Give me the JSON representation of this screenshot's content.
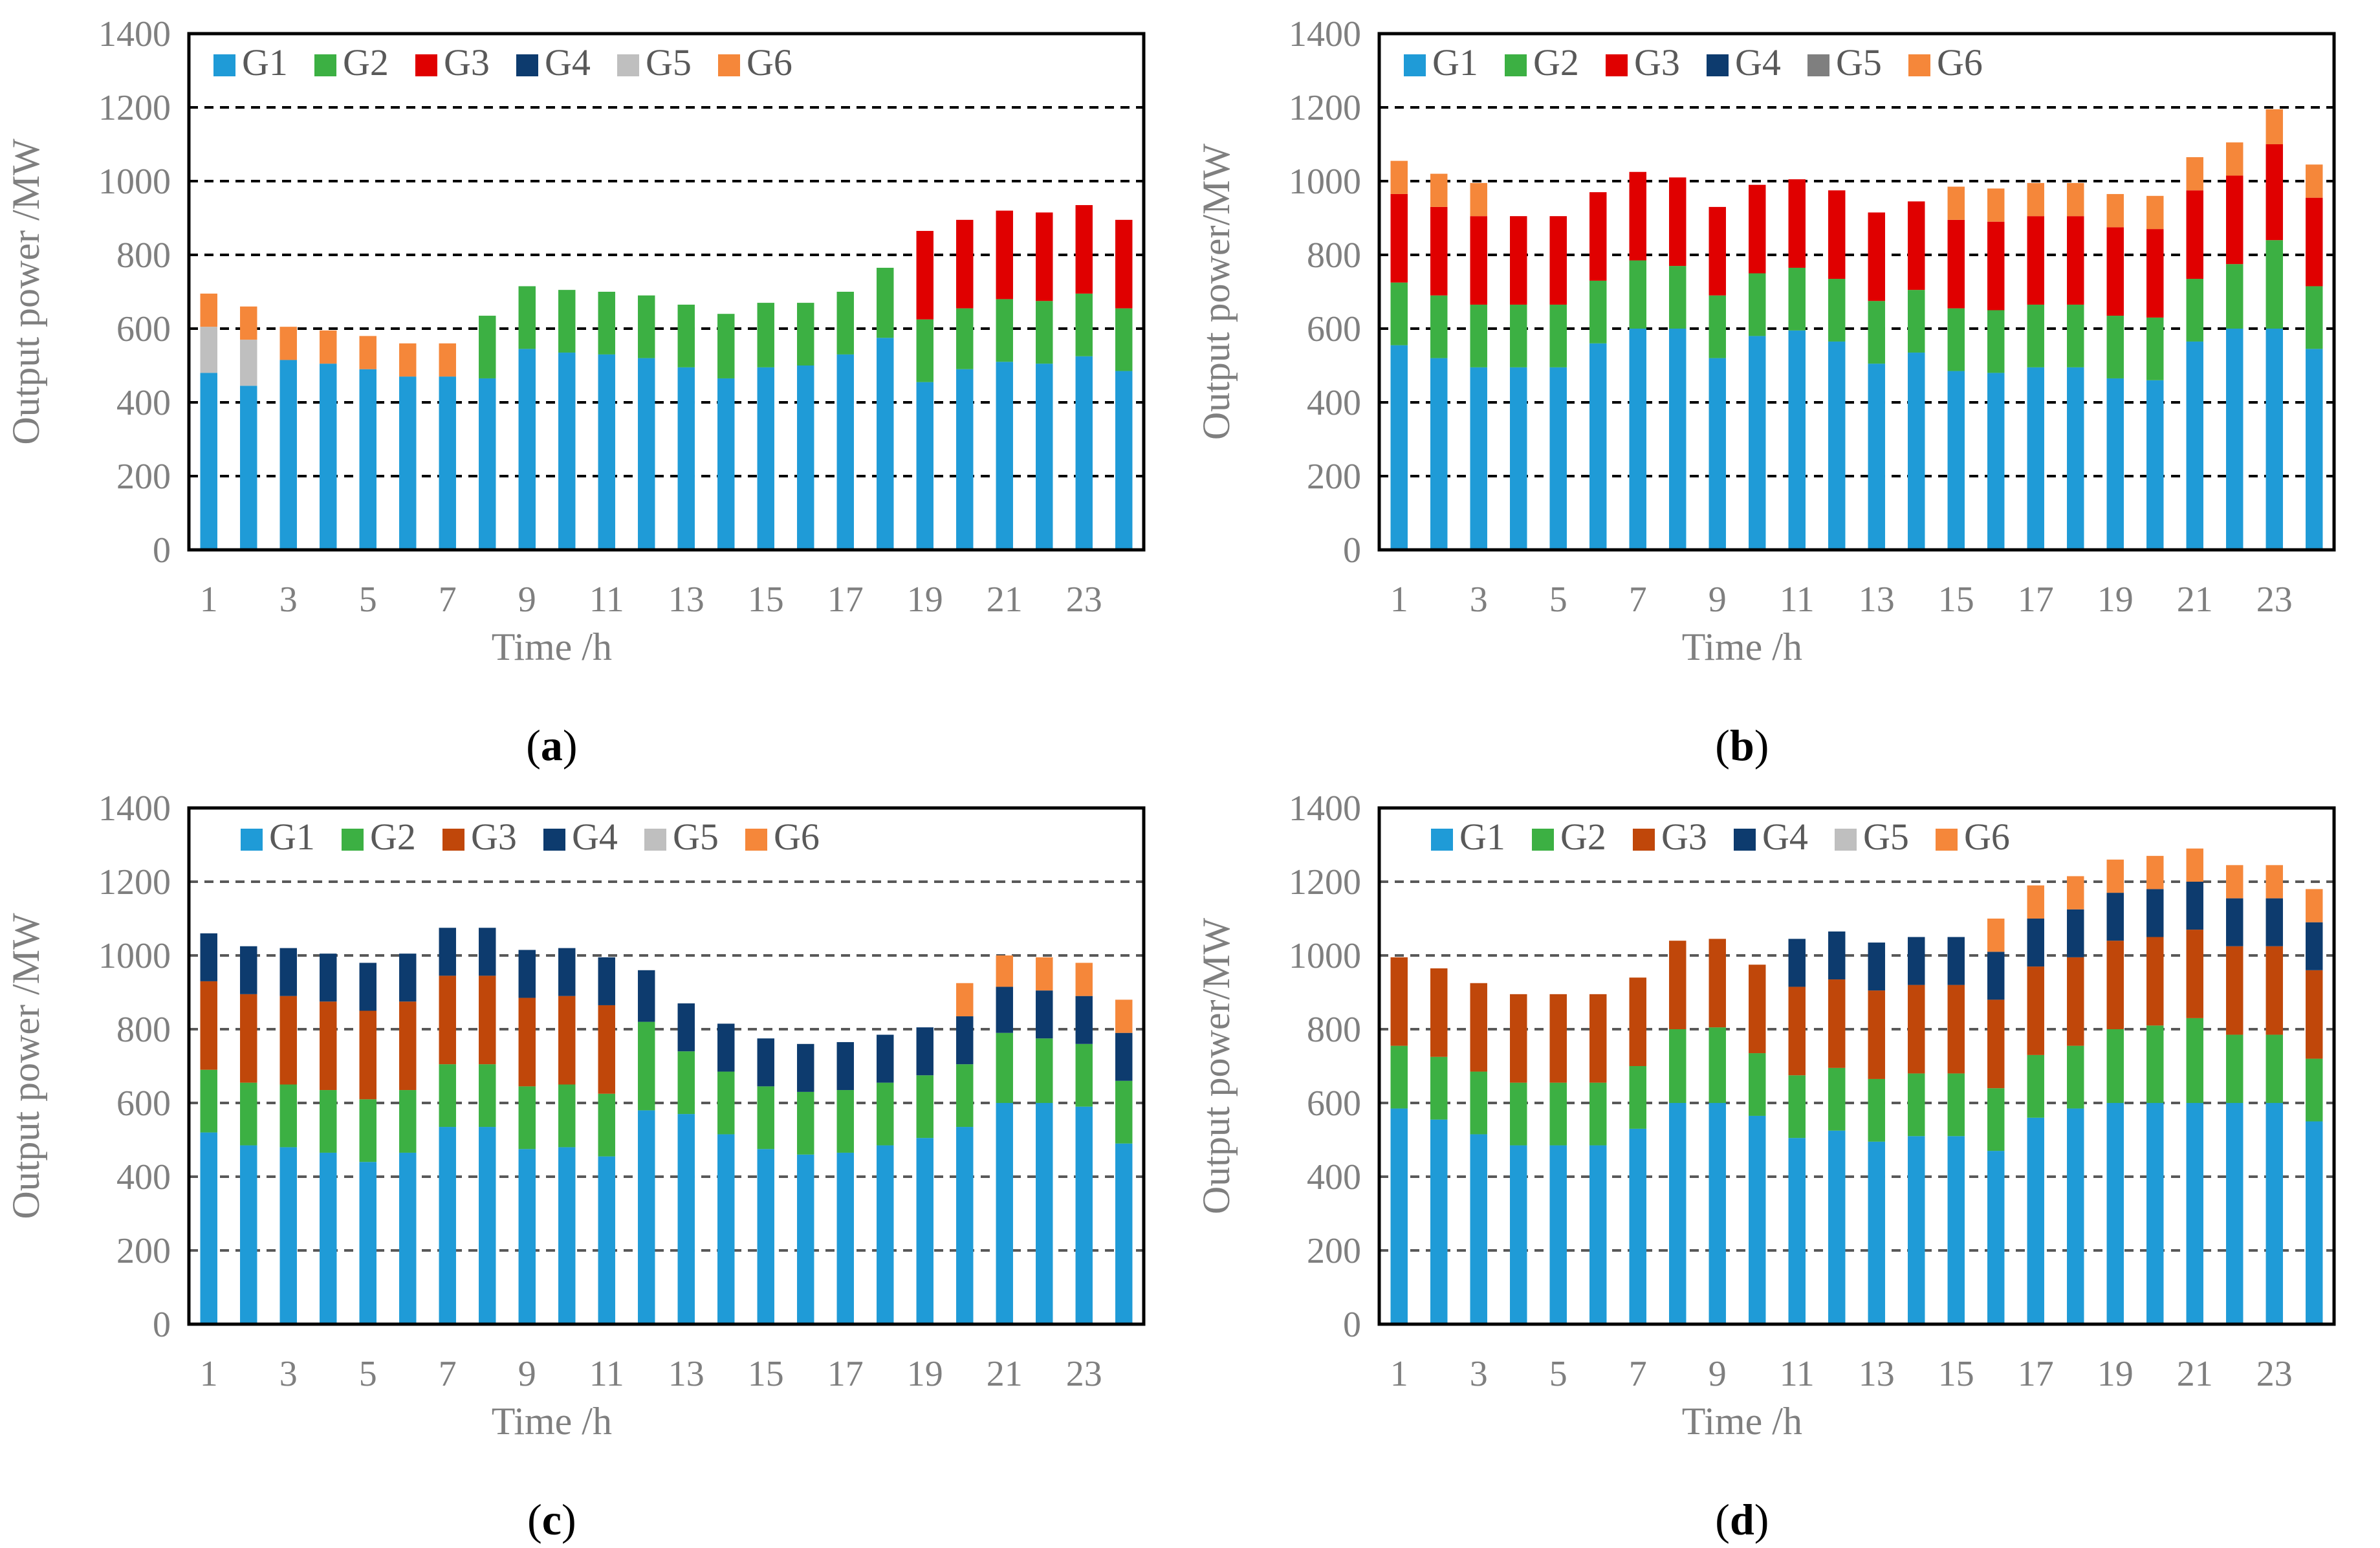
{
  "chart_data": [
    {
      "id": "a",
      "type": "bar",
      "stacked": true,
      "label": "a",
      "title": "",
      "xlabel": "Time /h",
      "ylabel": "Output power /MW",
      "ylim": [
        0,
        1400
      ],
      "yticks": [
        0,
        200,
        400,
        600,
        800,
        1000,
        1200,
        1400
      ],
      "xtick_labels": [
        "1",
        "3",
        "5",
        "7",
        "9",
        "11",
        "13",
        "15",
        "17",
        "19",
        "21",
        "23"
      ],
      "categories": [
        1,
        2,
        3,
        4,
        5,
        6,
        7,
        8,
        9,
        10,
        11,
        12,
        13,
        14,
        15,
        16,
        17,
        18,
        19,
        20,
        21,
        22,
        23,
        24
      ],
      "grid": "horizontal dashed at 200, 400, 600, 800, 1000, 1200",
      "legend_position": "top-left inside",
      "series": [
        {
          "name": "G1",
          "color": "#1f9bd7",
          "values": [
            480,
            445,
            515,
            505,
            490,
            470,
            470,
            465,
            545,
            535,
            530,
            520,
            495,
            465,
            495,
            500,
            530,
            575,
            455,
            490,
            510,
            505,
            525,
            485
          ]
        },
        {
          "name": "G2",
          "color": "#3cb043",
          "values": [
            0,
            0,
            0,
            0,
            0,
            0,
            0,
            170,
            170,
            170,
            170,
            170,
            170,
            175,
            175,
            170,
            170,
            190,
            170,
            165,
            170,
            170,
            170,
            170
          ]
        },
        {
          "name": "G3",
          "color": "#e00000",
          "values": [
            0,
            0,
            0,
            0,
            0,
            0,
            0,
            0,
            0,
            0,
            0,
            0,
            0,
            0,
            0,
            0,
            0,
            0,
            240,
            240,
            240,
            240,
            240,
            240
          ]
        },
        {
          "name": "G4",
          "color": "#0d3b6e",
          "values": [
            0,
            0,
            0,
            0,
            0,
            0,
            0,
            0,
            0,
            0,
            0,
            0,
            0,
            0,
            0,
            0,
            0,
            0,
            0,
            0,
            0,
            0,
            0,
            0
          ]
        },
        {
          "name": "G5",
          "color": "#bfbfbf",
          "values": [
            125,
            125,
            0,
            0,
            0,
            0,
            0,
            0,
            0,
            0,
            0,
            0,
            0,
            0,
            0,
            0,
            0,
            0,
            0,
            0,
            0,
            0,
            0,
            0
          ]
        },
        {
          "name": "G6",
          "color": "#f5873a",
          "values": [
            90,
            90,
            90,
            90,
            90,
            90,
            90,
            0,
            0,
            0,
            0,
            0,
            0,
            0,
            0,
            0,
            0,
            0,
            0,
            0,
            0,
            0,
            0,
            0
          ]
        }
      ]
    },
    {
      "id": "b",
      "type": "bar",
      "stacked": true,
      "label": "b",
      "title": "",
      "xlabel": "Time /h",
      "ylabel": "Output power/MW",
      "ylim": [
        0,
        1400
      ],
      "yticks": [
        0,
        200,
        400,
        600,
        800,
        1000,
        1200,
        1400
      ],
      "xtick_labels": [
        "1",
        "3",
        "5",
        "7",
        "9",
        "11",
        "13",
        "15",
        "17",
        "19",
        "21",
        "23"
      ],
      "categories": [
        1,
        2,
        3,
        4,
        5,
        6,
        7,
        8,
        9,
        10,
        11,
        12,
        13,
        14,
        15,
        16,
        17,
        18,
        19,
        20,
        21,
        22,
        23,
        24
      ],
      "grid": "horizontal dashed at 200, 400, 600, 800, 1000, 1200",
      "legend_position": "top-left inside",
      "series": [
        {
          "name": "G1",
          "color": "#1f9bd7",
          "values": [
            555,
            520,
            495,
            495,
            495,
            560,
            600,
            600,
            520,
            580,
            595,
            565,
            505,
            535,
            485,
            480,
            495,
            495,
            465,
            460,
            565,
            600,
            600,
            545
          ]
        },
        {
          "name": "G2",
          "color": "#3cb043",
          "values": [
            170,
            170,
            170,
            170,
            170,
            170,
            185,
            170,
            170,
            170,
            170,
            170,
            170,
            170,
            170,
            170,
            170,
            170,
            170,
            170,
            170,
            175,
            240,
            170
          ]
        },
        {
          "name": "G3",
          "color": "#e00000",
          "values": [
            240,
            240,
            240,
            240,
            240,
            240,
            240,
            240,
            240,
            240,
            240,
            240,
            240,
            240,
            240,
            240,
            240,
            240,
            240,
            240,
            240,
            240,
            260,
            240
          ]
        },
        {
          "name": "G4",
          "color": "#0d3b6e",
          "values": [
            0,
            0,
            0,
            0,
            0,
            0,
            0,
            0,
            0,
            0,
            0,
            0,
            0,
            0,
            0,
            0,
            0,
            0,
            0,
            0,
            0,
            0,
            0,
            0
          ]
        },
        {
          "name": "G5",
          "color": "#7f7f7f",
          "values": [
            0,
            0,
            0,
            0,
            0,
            0,
            0,
            0,
            0,
            0,
            0,
            0,
            0,
            0,
            0,
            0,
            0,
            0,
            0,
            0,
            0,
            0,
            0,
            0
          ]
        },
        {
          "name": "G6",
          "color": "#f5873a",
          "values": [
            90,
            90,
            90,
            0,
            0,
            0,
            0,
            0,
            0,
            0,
            0,
            0,
            0,
            0,
            90,
            90,
            90,
            90,
            90,
            90,
            90,
            90,
            95,
            90
          ]
        }
      ]
    },
    {
      "id": "c",
      "type": "bar",
      "stacked": true,
      "label": "c",
      "title": "",
      "xlabel": "Time /h",
      "ylabel": "Output power /MW",
      "ylim": [
        0,
        1400
      ],
      "yticks": [
        0,
        200,
        400,
        600,
        800,
        1000,
        1200,
        1400
      ],
      "xtick_labels": [
        "1",
        "3",
        "5",
        "7",
        "9",
        "11",
        "13",
        "15",
        "17",
        "19",
        "21",
        "23"
      ],
      "categories": [
        1,
        2,
        3,
        4,
        5,
        6,
        7,
        8,
        9,
        10,
        11,
        12,
        13,
        14,
        15,
        16,
        17,
        18,
        19,
        20,
        21,
        22,
        23,
        24
      ],
      "grid": "horizontal dashed at 200, 400, 600, 800, 1000, 1200",
      "legend_position": "top-left inside",
      "series": [
        {
          "name": "G1",
          "color": "#1f9bd7",
          "values": [
            520,
            485,
            480,
            465,
            440,
            465,
            535,
            535,
            475,
            480,
            455,
            580,
            570,
            515,
            475,
            460,
            465,
            485,
            505,
            535,
            600,
            600,
            590,
            490
          ]
        },
        {
          "name": "G2",
          "color": "#3cb043",
          "values": [
            170,
            170,
            170,
            170,
            170,
            170,
            170,
            170,
            170,
            170,
            170,
            240,
            170,
            170,
            170,
            170,
            170,
            170,
            170,
            170,
            190,
            175,
            170,
            170
          ]
        },
        {
          "name": "G3",
          "color": "#c0470a",
          "values": [
            240,
            240,
            240,
            240,
            240,
            240,
            240,
            240,
            240,
            240,
            240,
            0,
            0,
            0,
            0,
            0,
            0,
            0,
            0,
            0,
            0,
            0,
            0,
            0
          ]
        },
        {
          "name": "G4",
          "color": "#0d3b6e",
          "values": [
            130,
            130,
            130,
            130,
            130,
            130,
            130,
            130,
            130,
            130,
            130,
            140,
            130,
            130,
            130,
            130,
            130,
            130,
            130,
            130,
            125,
            130,
            130,
            130
          ]
        },
        {
          "name": "G5",
          "color": "#bfbfbf",
          "values": [
            0,
            0,
            0,
            0,
            0,
            0,
            0,
            0,
            0,
            0,
            0,
            0,
            0,
            0,
            0,
            0,
            0,
            0,
            0,
            0,
            0,
            0,
            0,
            0
          ]
        },
        {
          "name": "G6",
          "color": "#f5873a",
          "values": [
            0,
            0,
            0,
            0,
            0,
            0,
            0,
            0,
            0,
            0,
            0,
            0,
            0,
            0,
            0,
            0,
            0,
            0,
            0,
            90,
            85,
            90,
            90,
            90
          ]
        }
      ]
    },
    {
      "id": "d",
      "type": "bar",
      "stacked": true,
      "label": "d",
      "title": "",
      "xlabel": "Time /h",
      "ylabel": "Output power/MW",
      "ylim": [
        0,
        1400
      ],
      "yticks": [
        0,
        200,
        400,
        600,
        800,
        1000,
        1200,
        1400
      ],
      "xtick_labels": [
        "1",
        "3",
        "5",
        "7",
        "9",
        "11",
        "13",
        "15",
        "17",
        "19",
        "21",
        "23"
      ],
      "categories": [
        1,
        2,
        3,
        4,
        5,
        6,
        7,
        8,
        9,
        10,
        11,
        12,
        13,
        14,
        15,
        16,
        17,
        18,
        19,
        20,
        21,
        22,
        23,
        24
      ],
      "grid": "horizontal dashed at 200, 400, 600, 800, 1000, 1200",
      "legend_position": "top-left inside",
      "series": [
        {
          "name": "G1",
          "color": "#1f9bd7",
          "values": [
            585,
            555,
            515,
            485,
            485,
            485,
            530,
            600,
            600,
            565,
            505,
            525,
            495,
            510,
            510,
            470,
            560,
            585,
            600,
            600,
            600,
            600,
            600,
            550
          ]
        },
        {
          "name": "G2",
          "color": "#3cb043",
          "values": [
            170,
            170,
            170,
            170,
            170,
            170,
            170,
            200,
            205,
            170,
            170,
            170,
            170,
            170,
            170,
            170,
            170,
            170,
            200,
            210,
            230,
            185,
            185,
            170
          ]
        },
        {
          "name": "G3",
          "color": "#c0470a",
          "values": [
            240,
            240,
            240,
            240,
            240,
            240,
            240,
            240,
            240,
            240,
            240,
            240,
            240,
            240,
            240,
            240,
            240,
            240,
            240,
            240,
            240,
            240,
            240,
            240
          ]
        },
        {
          "name": "G4",
          "color": "#0d3b6e",
          "values": [
            0,
            0,
            0,
            0,
            0,
            0,
            0,
            0,
            0,
            0,
            130,
            130,
            130,
            130,
            130,
            130,
            130,
            130,
            130,
            130,
            130,
            130,
            130,
            130
          ]
        },
        {
          "name": "G5",
          "color": "#bfbfbf",
          "values": [
            0,
            0,
            0,
            0,
            0,
            0,
            0,
            0,
            0,
            0,
            0,
            0,
            0,
            0,
            0,
            0,
            0,
            0,
            0,
            0,
            0,
            0,
            0,
            0
          ]
        },
        {
          "name": "G6",
          "color": "#f5873a",
          "values": [
            0,
            0,
            0,
            0,
            0,
            0,
            0,
            0,
            0,
            0,
            0,
            0,
            0,
            0,
            0,
            90,
            90,
            90,
            90,
            90,
            90,
            90,
            90,
            90
          ]
        }
      ]
    }
  ]
}
